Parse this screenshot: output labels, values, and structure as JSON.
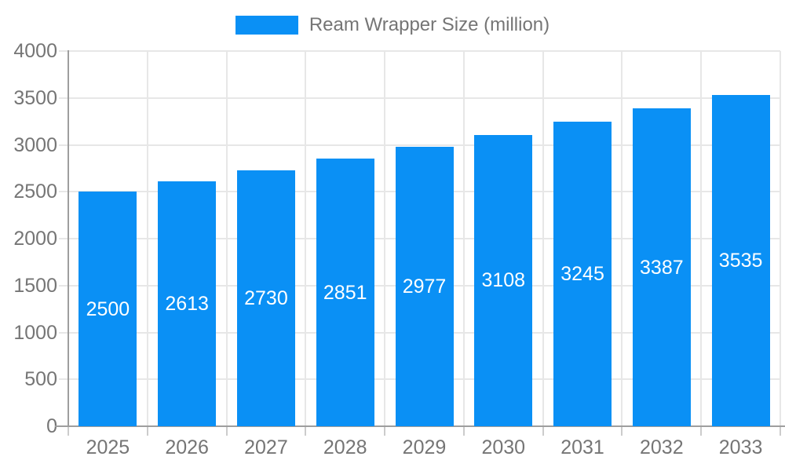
{
  "legend": {
    "label": "Ream Wrapper Size (million)"
  },
  "colors": {
    "bar": "#0a90f5",
    "axis_text": "#757575",
    "bar_value_text": "#ffffff",
    "gridline": "#e7e7e7",
    "axis_line": "#9e9e9e",
    "tick": "#cccccc",
    "background": "#ffffff"
  },
  "chart_data": {
    "type": "bar",
    "title": "Ream Wrapper Size (million)",
    "categories": [
      "2025",
      "2026",
      "2027",
      "2028",
      "2029",
      "2030",
      "2031",
      "2032",
      "2033"
    ],
    "values": [
      2500,
      2613,
      2730,
      2851,
      2977,
      3108,
      3245,
      3387,
      3535
    ],
    "series": [
      {
        "name": "Ream Wrapper Size (million)",
        "values": [
          2500,
          2613,
          2730,
          2851,
          2977,
          3108,
          3245,
          3387,
          3535
        ]
      }
    ],
    "xlabel": "",
    "ylabel": "",
    "ylim": [
      0,
      4000
    ],
    "yticks": [
      0,
      500,
      1000,
      1500,
      2000,
      2500,
      3000,
      3500,
      4000
    ],
    "grid": true,
    "legend_position": "top",
    "value_labels": "inside-center-white"
  }
}
